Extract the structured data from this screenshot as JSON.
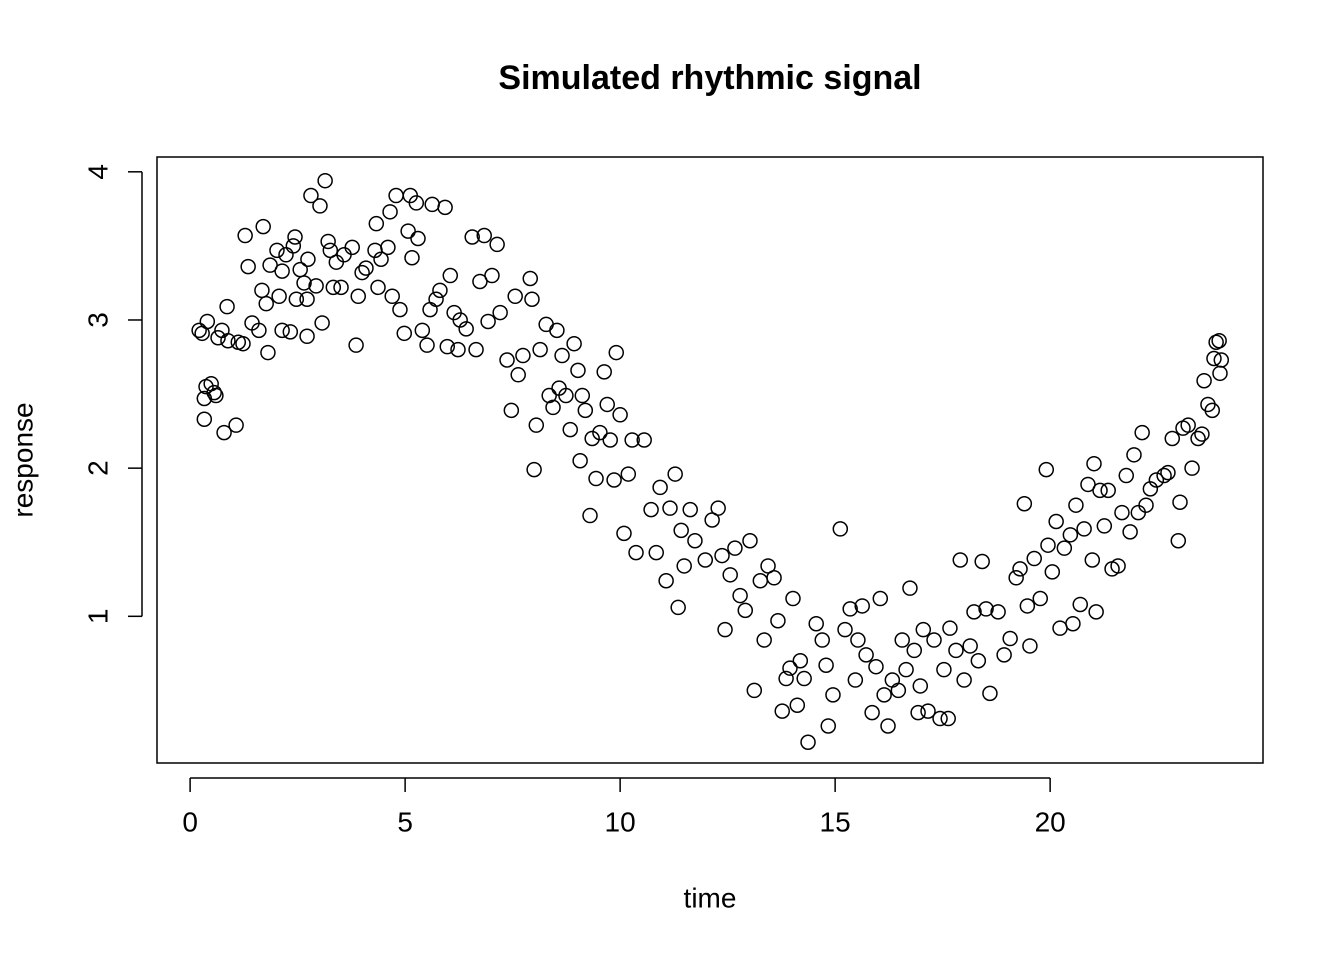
{
  "chart_data": {
    "type": "scatter",
    "title": "Simulated rhythmic signal",
    "xlabel": "time",
    "ylabel": "response",
    "color": "#000000",
    "xlim": [
      -0.77,
      24.95
    ],
    "ylim": [
      0.01,
      4.1
    ],
    "xticks": [
      0,
      5,
      10,
      15,
      20
    ],
    "yticks": [
      1,
      2,
      3,
      4
    ],
    "x": [
      0.21,
      0.28,
      0.4,
      0.37,
      0.33,
      0.49,
      0.56,
      0.6,
      0.33,
      0.65,
      0.74,
      0.86,
      0.88,
      0.79,
      1.07,
      1.12,
      1.23,
      1.28,
      1.35,
      1.44,
      1.6,
      1.67,
      1.7,
      1.77,
      1.81,
      1.86,
      2.02,
      2.07,
      2.14,
      2.14,
      2.23,
      2.33,
      2.4,
      2.44,
      2.47,
      2.56,
      2.65,
      2.72,
      2.72,
      2.74,
      2.81,
      2.93,
      3.02,
      3.07,
      3.14,
      3.21,
      3.26,
      3.33,
      3.4,
      3.51,
      3.58,
      3.77,
      3.86,
      3.91,
      4.0,
      4.09,
      4.3,
      4.33,
      4.37,
      4.44,
      4.6,
      4.65,
      4.7,
      4.79,
      4.88,
      4.98,
      5.07,
      5.12,
      5.16,
      5.26,
      5.3,
      5.4,
      5.51,
      5.58,
      5.63,
      5.72,
      5.81,
      5.93,
      5.98,
      6.05,
      6.14,
      6.23,
      6.28,
      6.42,
      6.56,
      6.65,
      6.74,
      6.84,
      6.93,
      7.02,
      7.14,
      7.21,
      7.37,
      7.47,
      7.56,
      7.63,
      7.74,
      7.91,
      7.95,
      8.0,
      8.05,
      8.14,
      8.28,
      8.35,
      8.44,
      8.53,
      8.58,
      8.65,
      8.74,
      8.84,
      8.93,
      9.02,
      9.07,
      9.12,
      9.19,
      9.3,
      9.35,
      9.44,
      9.53,
      9.63,
      9.7,
      9.77,
      9.86,
      9.91,
      10.0,
      10.09,
      10.19,
      10.28,
      10.37,
      10.56,
      10.72,
      10.84,
      10.93,
      11.07,
      11.16,
      11.28,
      11.35,
      11.42,
      11.49,
      11.63,
      11.74,
      11.98,
      12.14,
      12.28,
      12.37,
      12.44,
      12.56,
      12.67,
      12.79,
      12.91,
      13.02,
      13.12,
      13.26,
      13.35,
      13.44,
      13.58,
      13.67,
      13.77,
      13.86,
      13.95,
      14.02,
      14.12,
      14.19,
      14.28,
      14.37,
      14.56,
      14.7,
      14.79,
      14.84,
      14.95,
      15.12,
      15.23,
      15.35,
      15.47,
      15.53,
      15.63,
      15.72,
      15.86,
      15.95,
      16.05,
      16.14,
      16.23,
      16.33,
      16.47,
      16.56,
      16.65,
      16.74,
      16.84,
      16.93,
      16.98,
      17.05,
      17.16,
      17.3,
      17.44,
      17.53,
      17.63,
      17.67,
      17.81,
      17.91,
      18.0,
      18.14,
      18.23,
      18.33,
      18.42,
      18.51,
      18.6,
      18.79,
      18.93,
      19.07,
      19.21,
      19.3,
      19.4,
      19.47,
      19.53,
      19.63,
      19.77,
      19.91,
      19.95,
      20.05,
      20.14,
      20.23,
      20.33,
      20.47,
      20.53,
      20.6,
      20.7,
      20.79,
      20.88,
      20.98,
      21.02,
      21.07,
      21.16,
      21.26,
      21.35,
      21.44,
      21.58,
      21.67,
      21.77,
      21.86,
      21.95,
      22.05,
      22.14,
      22.23,
      22.33,
      22.47,
      22.65,
      22.74,
      22.84,
      22.98,
      23.02,
      23.09,
      23.21,
      23.3,
      23.44,
      23.53,
      23.58,
      23.67,
      23.77,
      23.81,
      23.86,
      23.93,
      23.95,
      23.98
    ],
    "y": [
      2.93,
      2.91,
      2.99,
      2.55,
      2.47,
      2.57,
      2.51,
      2.49,
      2.33,
      2.88,
      2.93,
      3.09,
      2.86,
      2.24,
      2.29,
      2.85,
      2.84,
      3.57,
      3.36,
      2.98,
      2.93,
      3.2,
      3.63,
      3.11,
      2.78,
      3.37,
      3.47,
      3.16,
      3.33,
      2.93,
      3.44,
      2.92,
      3.5,
      3.56,
      3.14,
      3.34,
      3.25,
      3.14,
      2.89,
      3.41,
      3.84,
      3.23,
      3.77,
      2.98,
      3.94,
      3.53,
      3.47,
      3.22,
      3.39,
      3.22,
      3.44,
      3.49,
      2.83,
      3.16,
      3.32,
      3.35,
      3.47,
      3.65,
      3.22,
      3.41,
      3.49,
      3.73,
      3.16,
      3.84,
      3.07,
      2.91,
      3.6,
      3.84,
      3.42,
      3.79,
      3.55,
      2.93,
      2.83,
      3.07,
      3.78,
      3.14,
      3.2,
      3.76,
      2.82,
      3.3,
      3.05,
      2.8,
      3.0,
      2.94,
      3.56,
      2.8,
      3.26,
      3.57,
      2.99,
      3.3,
      3.51,
      3.05,
      2.73,
      2.39,
      3.16,
      2.63,
      2.76,
      3.28,
      3.14,
      1.99,
      2.29,
      2.8,
      2.97,
      2.49,
      2.41,
      2.93,
      2.54,
      2.76,
      2.49,
      2.26,
      2.84,
      2.66,
      2.05,
      2.49,
      2.39,
      1.68,
      2.2,
      1.93,
      2.24,
      2.65,
      2.43,
      2.19,
      1.92,
      2.78,
      2.36,
      1.56,
      1.96,
      2.19,
      1.43,
      2.19,
      1.72,
      1.43,
      1.87,
      1.24,
      1.73,
      1.96,
      1.06,
      1.58,
      1.34,
      1.72,
      1.51,
      1.38,
      1.65,
      1.73,
      1.41,
      0.91,
      1.28,
      1.46,
      1.14,
      1.04,
      1.51,
      0.5,
      1.24,
      0.84,
      1.34,
      1.26,
      0.97,
      0.36,
      0.58,
      0.65,
      1.12,
      0.4,
      0.7,
      0.58,
      0.15,
      0.95,
      0.84,
      0.67,
      0.26,
      0.47,
      1.59,
      0.91,
      1.05,
      0.57,
      0.84,
      1.07,
      0.74,
      0.35,
      0.66,
      1.12,
      0.47,
      0.26,
      0.57,
      0.5,
      0.84,
      0.64,
      1.19,
      0.77,
      0.35,
      0.53,
      0.91,
      0.36,
      0.84,
      0.31,
      0.64,
      0.31,
      0.92,
      0.77,
      1.38,
      0.57,
      0.8,
      1.03,
      0.7,
      1.37,
      1.05,
      0.48,
      1.03,
      0.74,
      0.85,
      1.26,
      1.32,
      1.76,
      1.07,
      0.8,
      1.39,
      1.12,
      1.99,
      1.48,
      1.3,
      1.64,
      0.92,
      1.46,
      1.55,
      0.95,
      1.75,
      1.08,
      1.59,
      1.89,
      1.38,
      2.03,
      1.03,
      1.85,
      1.61,
      1.85,
      1.32,
      1.34,
      1.7,
      1.95,
      1.57,
      2.09,
      1.7,
      2.24,
      1.75,
      1.86,
      1.92,
      1.95,
      1.97,
      2.2,
      1.51,
      1.77,
      2.27,
      2.29,
      2.0,
      2.2,
      2.23,
      2.59,
      2.43,
      2.39,
      2.74,
      2.85,
      2.86,
      2.64,
      2.73
    ]
  }
}
